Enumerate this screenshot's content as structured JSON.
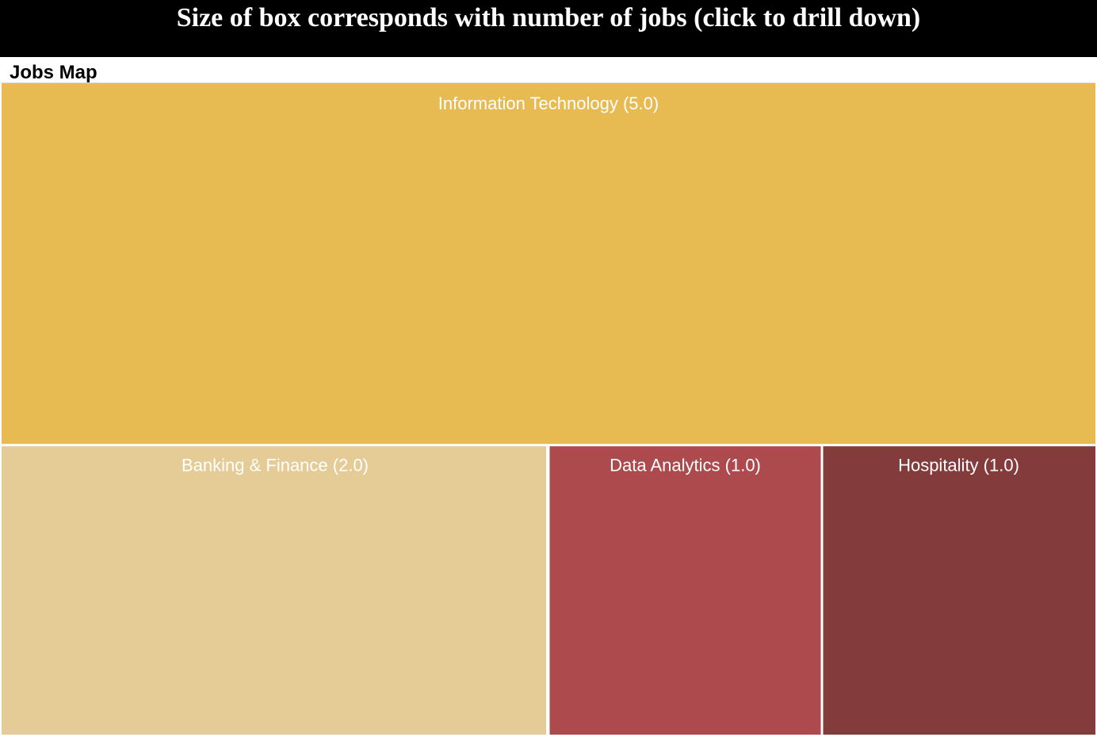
{
  "header": {
    "title": "Size of box corresponds with number of jobs (click to drill down)"
  },
  "chart_data": {
    "type": "treemap",
    "title": "Jobs Map",
    "items": [
      {
        "name": "Information Technology",
        "value": 5.0,
        "label": "Information Technology (5.0)",
        "color": "#E8BA52"
      },
      {
        "name": "Banking & Finance",
        "value": 2.0,
        "label": "Banking & Finance (2.0)",
        "color": "#E5CB96"
      },
      {
        "name": "Data Analytics",
        "value": 1.0,
        "label": "Data Analytics (1.0)",
        "color": "#AD4A4E"
      },
      {
        "name": "Hospitality",
        "value": 1.0,
        "label": "Hospitality (1.0)",
        "color": "#843B3B"
      }
    ]
  }
}
